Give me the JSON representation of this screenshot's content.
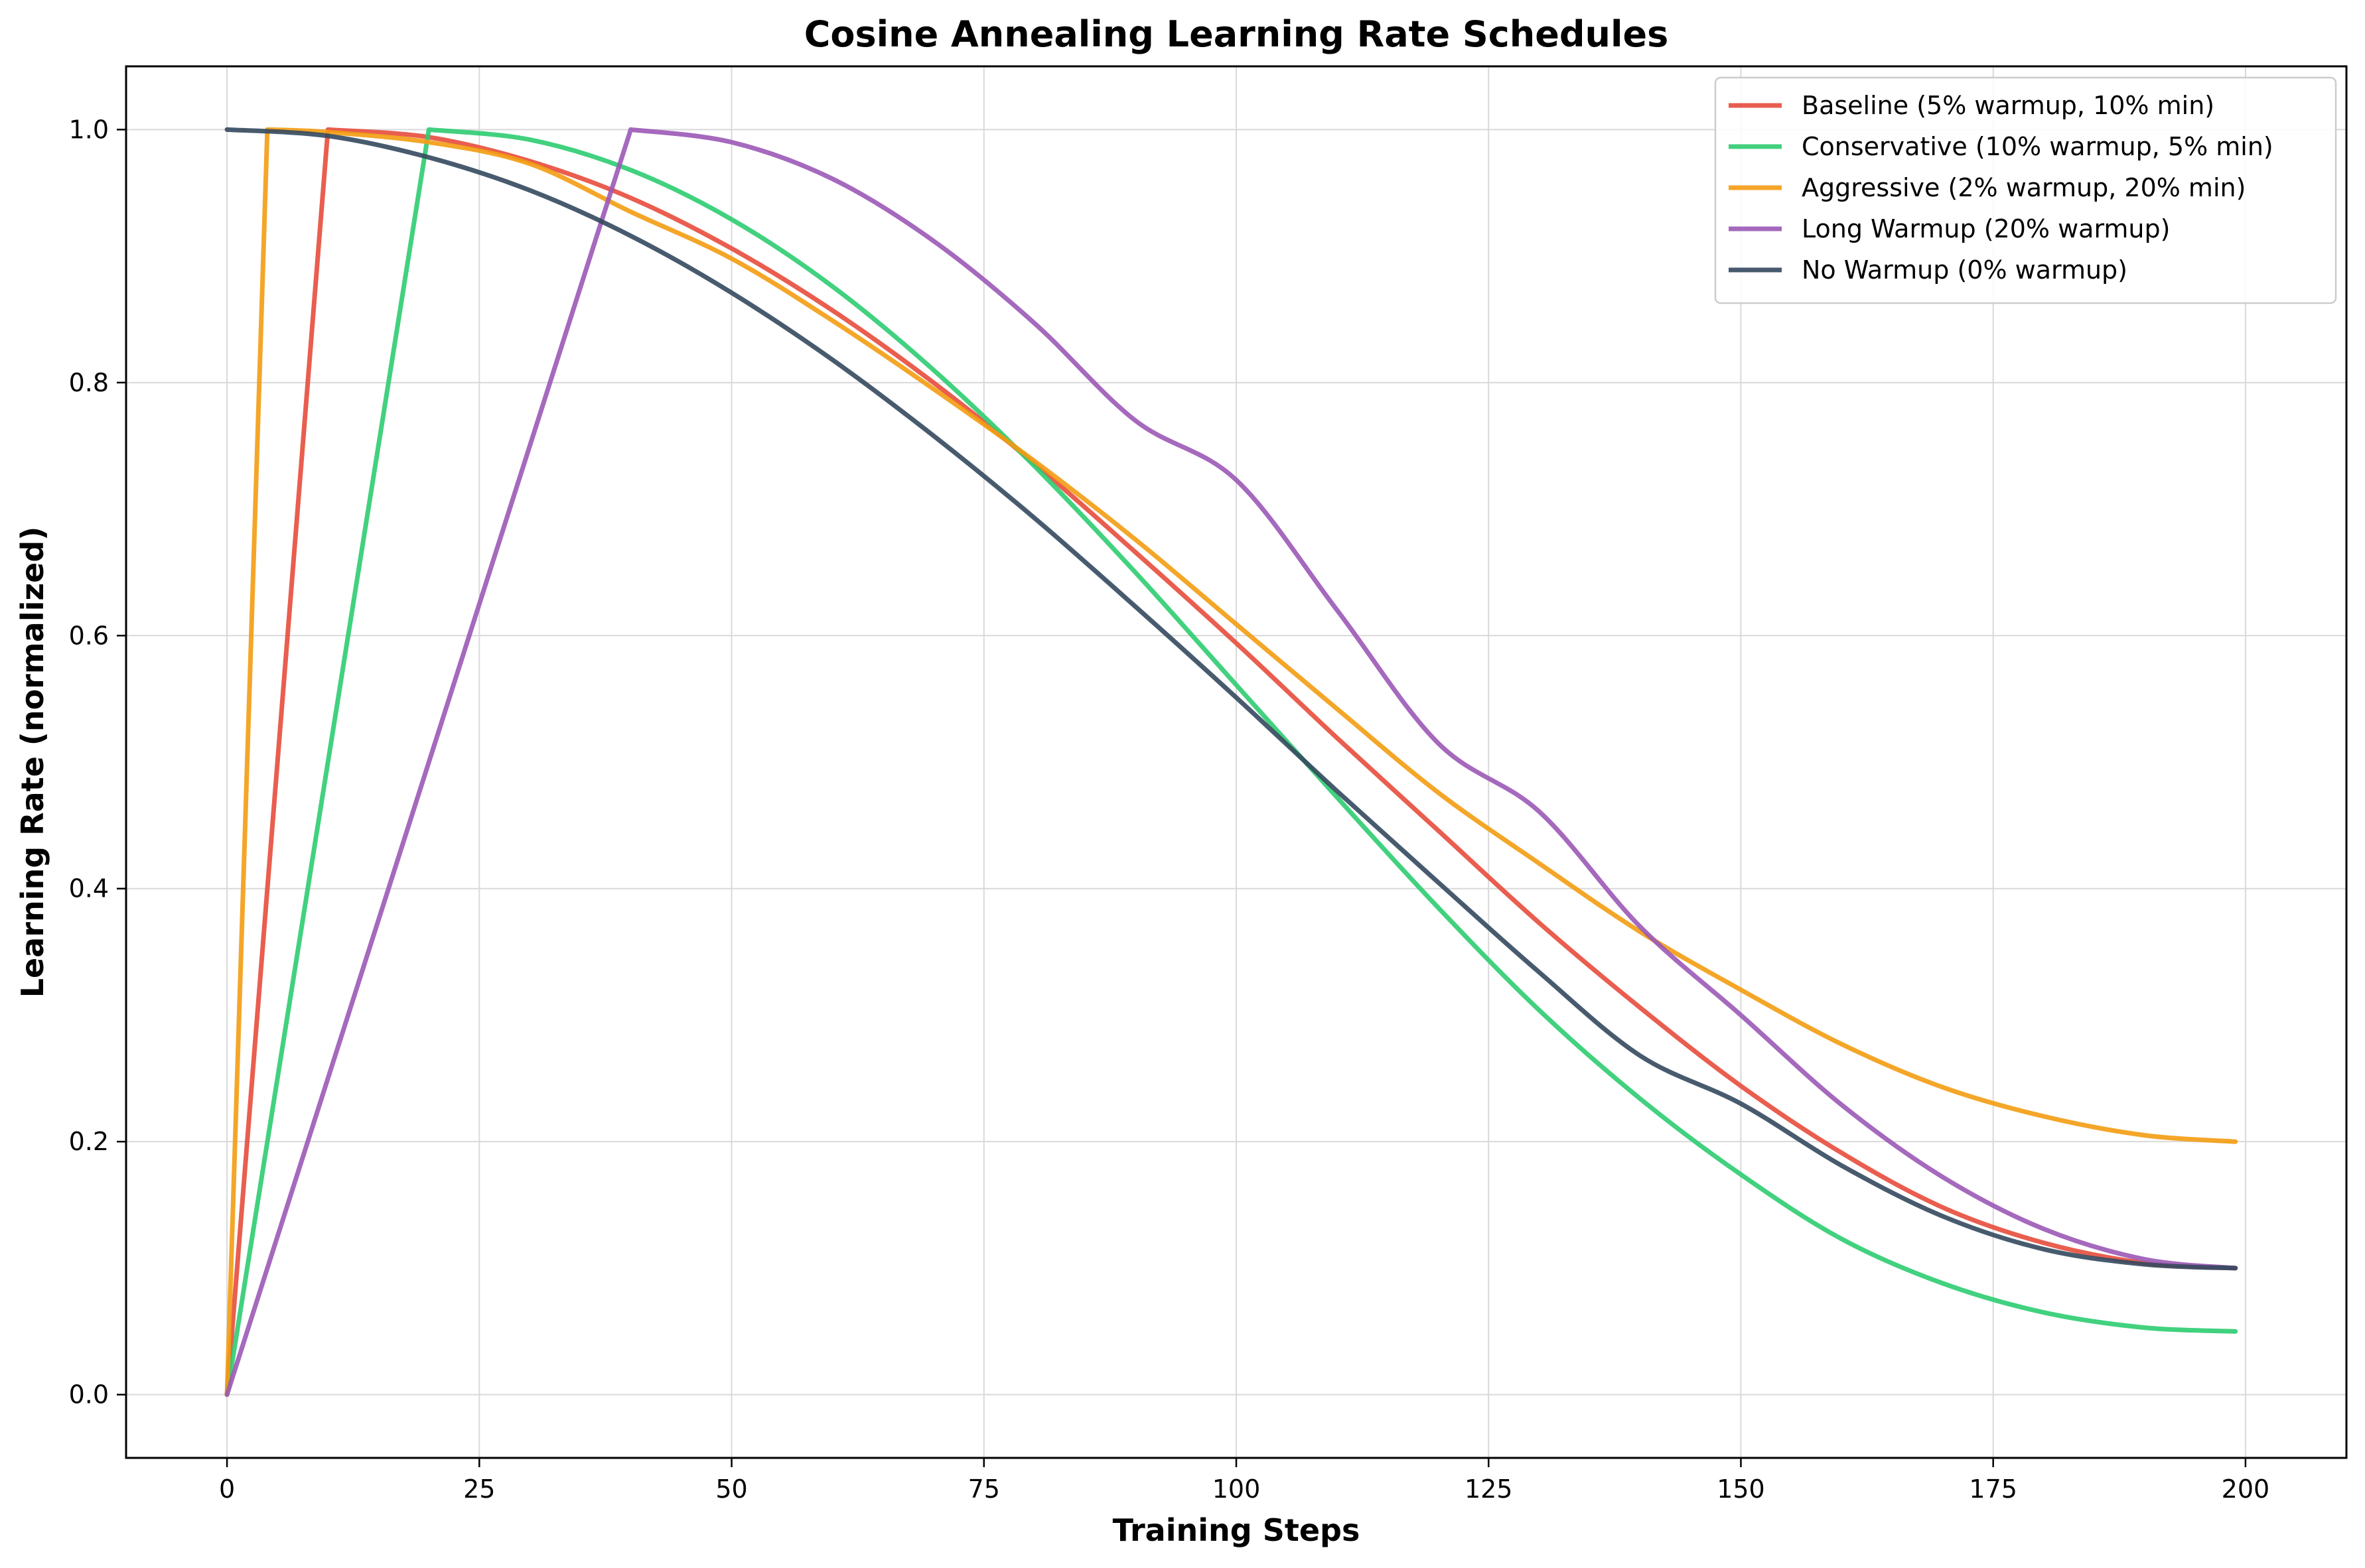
{
  "chart_data": {
    "type": "line",
    "title": "Cosine Annealing Learning Rate Schedules",
    "xlabel": "Training Steps",
    "ylabel": "Learning Rate (normalized)",
    "xlim": [
      -10,
      210
    ],
    "ylim": [
      -0.05,
      1.05
    ],
    "x_ticks": [
      0,
      25,
      50,
      75,
      100,
      125,
      150,
      175,
      200
    ],
    "y_ticks": [
      0.0,
      0.2,
      0.4,
      0.6,
      0.8,
      1.0
    ],
    "x_tick_labels": [
      "0",
      "25",
      "50",
      "75",
      "100",
      "125",
      "150",
      "175",
      "200"
    ],
    "y_tick_labels": [
      "0.0",
      "0.2",
      "0.4",
      "0.6",
      "0.8",
      "1.0"
    ],
    "grid": true,
    "legend_position": "top-right",
    "series": [
      {
        "name": "Baseline (5% warmup, 10% min)",
        "color": "#e74c3c",
        "x": [
          0,
          10,
          20,
          30,
          40,
          50,
          60,
          70,
          80,
          90,
          100,
          110,
          120,
          130,
          140,
          150,
          160,
          170,
          180,
          190,
          199
        ],
        "y": [
          0.0,
          1.0,
          0.994,
          0.975,
          0.946,
          0.906,
          0.857,
          0.8,
          0.736,
          0.666,
          0.594,
          0.519,
          0.446,
          0.373,
          0.306,
          0.244,
          0.191,
          0.148,
          0.12,
          0.104,
          0.1
        ]
      },
      {
        "name": "Conservative (10% warmup, 5% min)",
        "color": "#2ecc71",
        "x": [
          0,
          20,
          30,
          40,
          50,
          60,
          70,
          80,
          90,
          100,
          110,
          120,
          130,
          140,
          150,
          160,
          170,
          180,
          190,
          199
        ],
        "y": [
          0.0,
          1.0,
          0.992,
          0.968,
          0.929,
          0.876,
          0.81,
          0.734,
          0.65,
          0.561,
          0.472,
          0.385,
          0.304,
          0.234,
          0.174,
          0.123,
          0.088,
          0.065,
          0.053,
          0.05
        ]
      },
      {
        "name": "Aggressive (2% warmup, 20% min)",
        "color": "#f39c12",
        "x": [
          0,
          4,
          10,
          20,
          30,
          40,
          50,
          60,
          70,
          80,
          90,
          100,
          110,
          120,
          130,
          140,
          150,
          160,
          170,
          180,
          190,
          199
        ],
        "y": [
          0.0,
          1.0,
          0.998,
          0.99,
          0.973,
          0.935,
          0.898,
          0.849,
          0.795,
          0.738,
          0.676,
          0.609,
          0.542,
          0.476,
          0.42,
          0.366,
          0.32,
          0.277,
          0.243,
          0.22,
          0.205,
          0.2
        ]
      },
      {
        "name": "Long Warmup (20% warmup)",
        "color": "#9b59b6",
        "x": [
          0,
          40,
          50,
          60,
          70,
          80,
          90,
          100,
          110,
          120,
          130,
          140,
          150,
          160,
          170,
          180,
          190,
          199
        ],
        "y": [
          0.0,
          1.0,
          0.99,
          0.961,
          0.912,
          0.847,
          0.77,
          0.723,
          0.62,
          0.515,
          0.461,
          0.37,
          0.3,
          0.229,
          0.172,
          0.131,
          0.107,
          0.1
        ]
      },
      {
        "name": "No Warmup (0% warmup)",
        "color": "#34495e",
        "x": [
          0,
          10,
          20,
          30,
          40,
          50,
          60,
          70,
          80,
          90,
          100,
          110,
          120,
          130,
          140,
          150,
          160,
          170,
          180,
          190,
          199
        ],
        "y": [
          1.0,
          0.995,
          0.978,
          0.952,
          0.916,
          0.871,
          0.818,
          0.758,
          0.693,
          0.623,
          0.551,
          0.477,
          0.405,
          0.334,
          0.268,
          0.23,
          0.181,
          0.141,
          0.115,
          0.103,
          0.1
        ]
      }
    ]
  }
}
